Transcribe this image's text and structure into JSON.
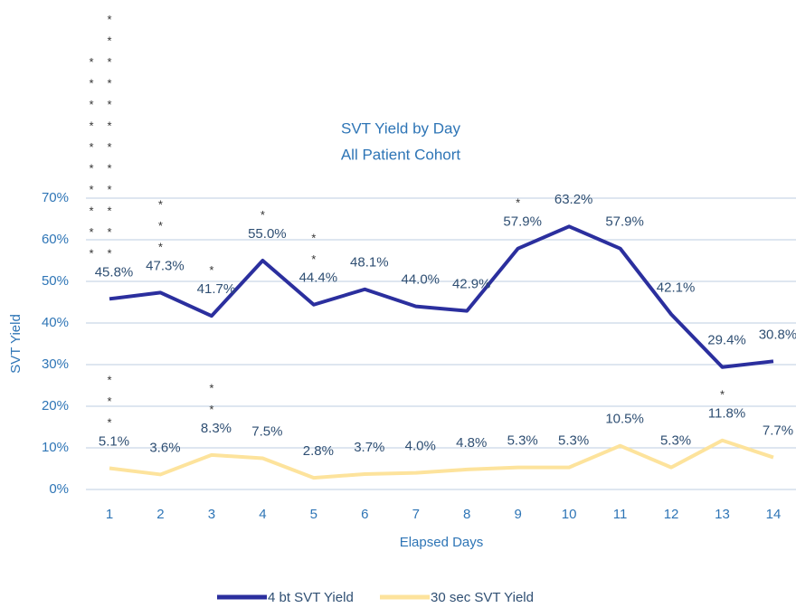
{
  "chart_data": {
    "type": "line",
    "title": [
      "SVT Yield by Day",
      "All Patient Cohort"
    ],
    "x_label": "Elapsed Days",
    "y_label": "SVT Yield",
    "categories": [
      "1",
      "2",
      "3",
      "4",
      "5",
      "6",
      "7",
      "8",
      "9",
      "10",
      "11",
      "12",
      "13",
      "14"
    ],
    "ylim": [
      0,
      70
    ],
    "yticks": [
      {
        "value": 0,
        "label": "0%"
      },
      {
        "value": 10,
        "label": "10%"
      },
      {
        "value": 20,
        "label": "20%"
      },
      {
        "value": 30,
        "label": "30%"
      },
      {
        "value": 40,
        "label": "40%"
      },
      {
        "value": 50,
        "label": "50%"
      },
      {
        "value": 60,
        "label": "60%"
      },
      {
        "value": 70,
        "label": "70%"
      }
    ],
    "grid": true,
    "legend": "bottom",
    "series": [
      {
        "name": "4 bt SVT Yield",
        "color": "#2b2f9e",
        "values": [
          45.8,
          47.3,
          41.7,
          55.0,
          44.4,
          48.1,
          44.0,
          42.9,
          57.9,
          63.2,
          57.9,
          42.1,
          29.4,
          30.8
        ],
        "value_labels": [
          "45.8%",
          "47.3%",
          "41.7%",
          "55.0%",
          "44.4%",
          "48.1%",
          "44.0%",
          "42.9%",
          "57.9%",
          "63.2%",
          "57.9%",
          "42.1%",
          "29.4%",
          "30.8%"
        ],
        "markers": [
          [
            "**********",
            "************"
          ],
          [
            "***"
          ],
          [
            "*"
          ],
          [
            "*"
          ],
          [
            "**"
          ],
          [],
          [],
          [],
          [
            "*"
          ],
          [],
          [],
          [],
          [],
          []
        ]
      },
      {
        "name": "30 sec SVT Yield",
        "color": "#fde39c",
        "values": [
          5.1,
          3.6,
          8.3,
          7.5,
          2.8,
          3.7,
          4.0,
          4.8,
          5.3,
          5.3,
          10.5,
          5.3,
          11.8,
          7.7
        ],
        "value_labels": [
          "5.1%",
          "3.6%",
          "8.3%",
          "7.5%",
          "2.8%",
          "3.7%",
          "4.0%",
          "4.8%",
          "5.3%",
          "5.3%",
          "10.5%",
          "5.3%",
          "11.8%",
          "7.7%"
        ],
        "markers": [
          [
            "***"
          ],
          [],
          [
            "**"
          ],
          [],
          [],
          [],
          [],
          [],
          [],
          [],
          [],
          [],
          [
            "*"
          ],
          []
        ]
      }
    ]
  }
}
